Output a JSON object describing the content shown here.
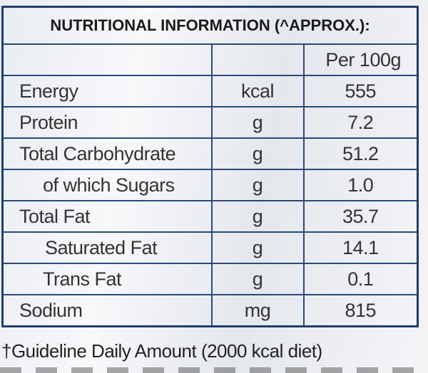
{
  "title": "NUTRITIONAL INFORMATION (^APPROX.):",
  "column_header": "Per 100g",
  "rows": [
    {
      "name": "Energy",
      "unit": "kcal",
      "value": "555"
    },
    {
      "name": "Protein",
      "unit": "g",
      "value": "7.2"
    },
    {
      "name": "Total Carbohydrate",
      "unit": "g",
      "value": "51.2"
    },
    {
      "name": "of which Sugars",
      "unit": "g",
      "value": "1.0"
    },
    {
      "name": "Total Fat",
      "unit": "g",
      "value": "35.7"
    },
    {
      "name": "Saturated Fat",
      "unit": "g",
      "value": "14.1"
    },
    {
      "name": "Trans Fat",
      "unit": "g",
      "value": "0.1"
    },
    {
      "name": "Sodium",
      "unit": "mg",
      "value": "815"
    }
  ],
  "footnote": "†Guideline Daily Amount (2000 kcal diet)"
}
